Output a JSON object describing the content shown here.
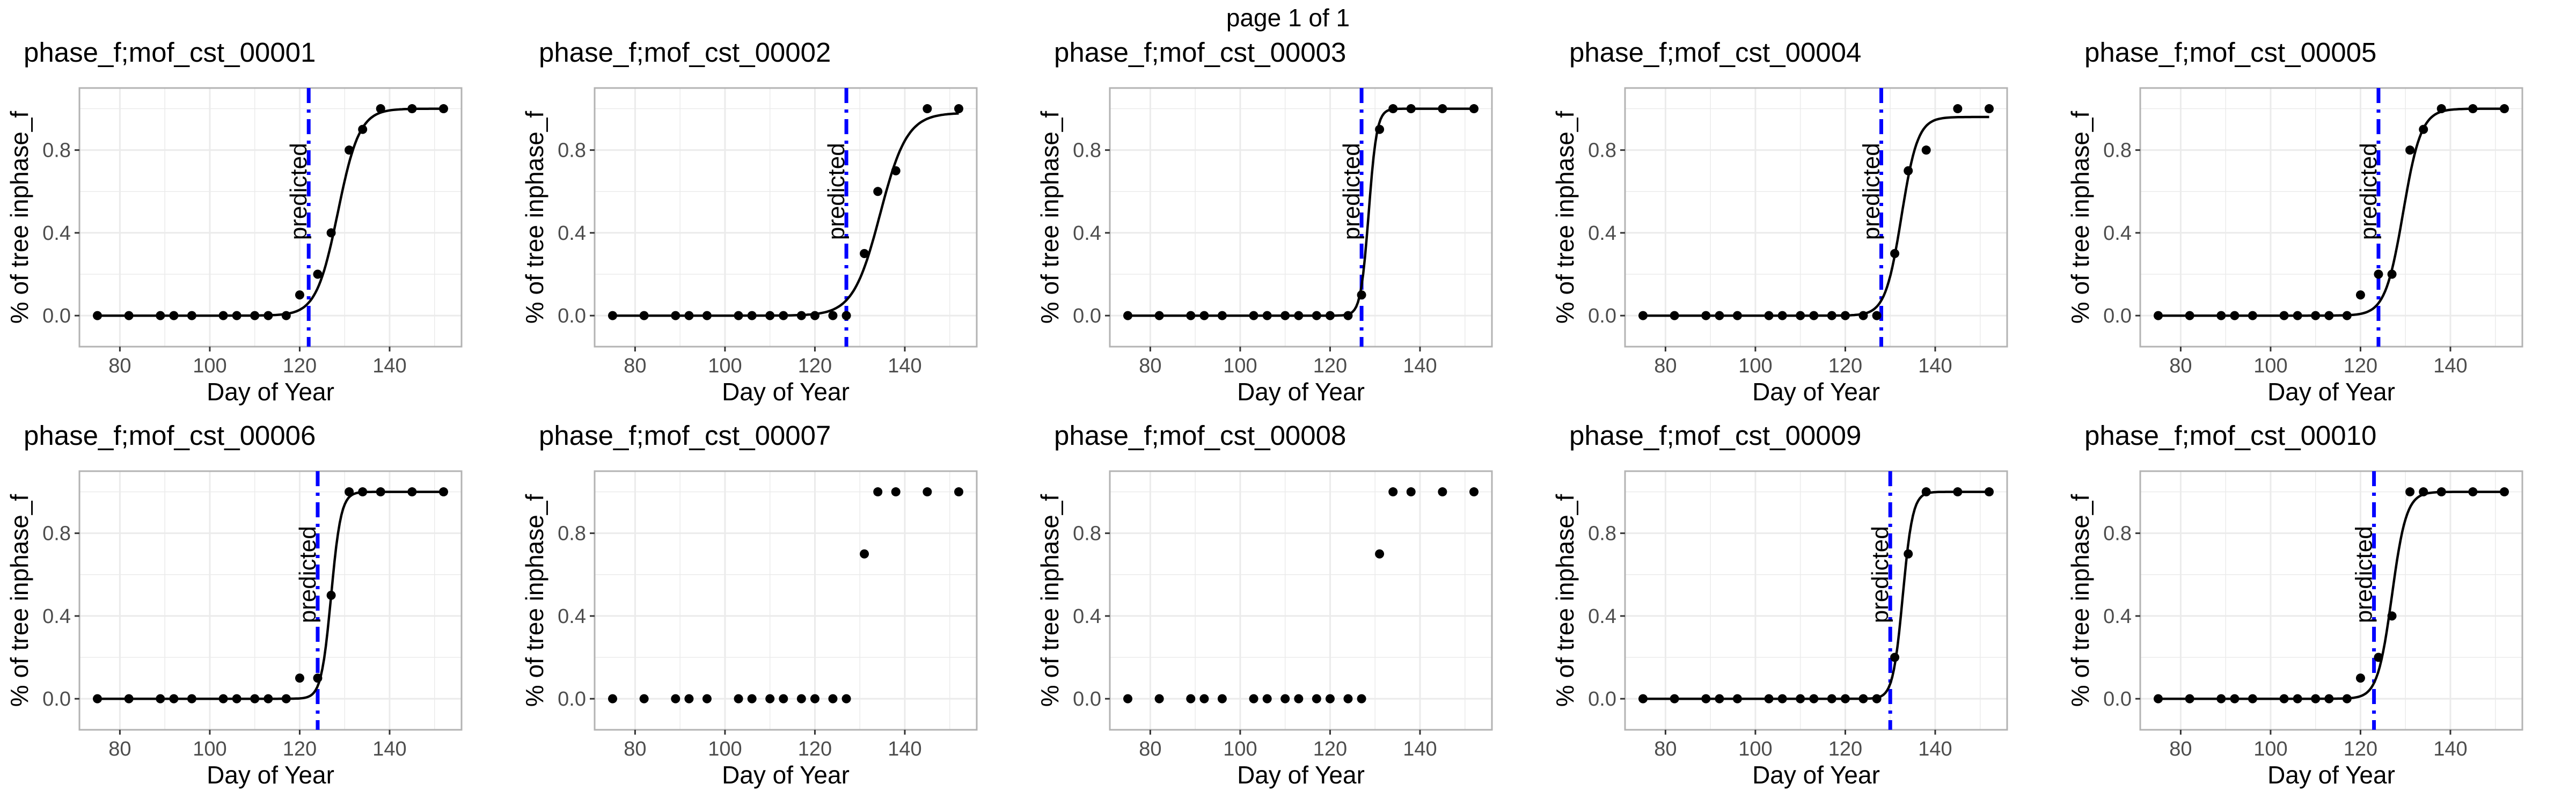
{
  "page_title": "page 1 of 1",
  "colors": {
    "predicted_line": "#0000ff",
    "points": "#000000",
    "curve": "#000000",
    "grid": "#ebebeb",
    "border": "#b3b3b3"
  },
  "chart_data": [
    {
      "type": "scatter",
      "title": "phase_f;mof_cst_00001",
      "xlabel": "Day of Year",
      "ylabel": "% of tree inphase_f",
      "xlim": [
        71,
        156
      ],
      "ylim": [
        -0.15,
        1.1
      ],
      "xticks": [
        80,
        100,
        120,
        140
      ],
      "yticks": [
        0.0,
        0.4,
        0.8
      ],
      "xtick_labels": [
        "80",
        "100",
        "120",
        "140"
      ],
      "ytick_labels": [
        "0.0",
        "0.4",
        "0.8"
      ],
      "points": {
        "x": [
          75,
          82,
          89,
          92,
          96,
          103,
          106,
          110,
          113,
          117,
          120,
          124,
          127,
          131,
          134,
          138,
          145,
          152
        ],
        "y": [
          0,
          0,
          0,
          0,
          0,
          0,
          0,
          0,
          0,
          0,
          0.1,
          0.2,
          0.4,
          0.8,
          0.9,
          1,
          1,
          1
        ]
      },
      "fit": {
        "asymptote": 1.0,
        "midpoint": 128.5,
        "scale": 2.4
      },
      "predicted": {
        "x": 122,
        "label": "predicted"
      },
      "grid": true
    },
    {
      "type": "scatter",
      "title": "phase_f;mof_cst_00002",
      "xlabel": "Day of Year",
      "ylabel": "% of tree inphase_f",
      "xlim": [
        71,
        156
      ],
      "ylim": [
        -0.15,
        1.1
      ],
      "xticks": [
        80,
        100,
        120,
        140
      ],
      "yticks": [
        0.0,
        0.4,
        0.8
      ],
      "xtick_labels": [
        "80",
        "100",
        "120",
        "140"
      ],
      "ytick_labels": [
        "0.0",
        "0.4",
        "0.8"
      ],
      "points": {
        "x": [
          75,
          82,
          89,
          92,
          96,
          103,
          106,
          110,
          113,
          117,
          120,
          124,
          127,
          131,
          134,
          138,
          145,
          152
        ],
        "y": [
          0,
          0,
          0,
          0,
          0,
          0,
          0,
          0,
          0,
          0,
          0,
          0,
          0,
          0.3,
          0.6,
          0.7,
          1,
          1
        ]
      },
      "fit": {
        "asymptote": 0.98,
        "midpoint": 134.5,
        "scale": 3.0
      },
      "predicted": {
        "x": 127,
        "label": "predicted"
      },
      "grid": true
    },
    {
      "type": "scatter",
      "title": "phase_f;mof_cst_00003",
      "xlabel": "Day of Year",
      "ylabel": "% of tree inphase_f",
      "xlim": [
        71,
        156
      ],
      "ylim": [
        -0.15,
        1.1
      ],
      "xticks": [
        80,
        100,
        120,
        140
      ],
      "yticks": [
        0.0,
        0.4,
        0.8
      ],
      "xtick_labels": [
        "80",
        "100",
        "120",
        "140"
      ],
      "ytick_labels": [
        "0.0",
        "0.4",
        "0.8"
      ],
      "points": {
        "x": [
          75,
          82,
          89,
          92,
          96,
          103,
          106,
          110,
          113,
          117,
          120,
          124,
          127,
          131,
          134,
          138,
          145,
          152
        ],
        "y": [
          0,
          0,
          0,
          0,
          0,
          0,
          0,
          0,
          0,
          0,
          0,
          0,
          0.1,
          0.9,
          1,
          1,
          1,
          1
        ]
      },
      "fit": {
        "asymptote": 1.0,
        "midpoint": 128.6,
        "scale": 0.9
      },
      "predicted": {
        "x": 127,
        "label": "predicted"
      },
      "grid": true
    },
    {
      "type": "scatter",
      "title": "phase_f;mof_cst_00004",
      "xlabel": "Day of Year",
      "ylabel": "% of tree inphase_f",
      "xlim": [
        71,
        156
      ],
      "ylim": [
        -0.15,
        1.1
      ],
      "xticks": [
        80,
        100,
        120,
        140
      ],
      "yticks": [
        0.0,
        0.4,
        0.8
      ],
      "xtick_labels": [
        "80",
        "100",
        "120",
        "140"
      ],
      "ytick_labels": [
        "0.0",
        "0.4",
        "0.8"
      ],
      "points": {
        "x": [
          75,
          82,
          89,
          92,
          96,
          103,
          106,
          110,
          113,
          117,
          120,
          124,
          127,
          131,
          134,
          138,
          145,
          152
        ],
        "y": [
          0,
          0,
          0,
          0,
          0,
          0,
          0,
          0,
          0,
          0,
          0,
          0,
          0,
          0.3,
          0.7,
          0.8,
          1,
          1
        ]
      },
      "fit": {
        "asymptote": 0.96,
        "midpoint": 132.5,
        "scale": 1.8
      },
      "predicted": {
        "x": 128,
        "label": "predicted"
      },
      "grid": true
    },
    {
      "type": "scatter",
      "title": "phase_f;mof_cst_00005",
      "xlabel": "Day of Year",
      "ylabel": "% of tree inphase_f",
      "xlim": [
        71,
        156
      ],
      "ylim": [
        -0.15,
        1.1
      ],
      "xticks": [
        80,
        100,
        120,
        140
      ],
      "yticks": [
        0.0,
        0.4,
        0.8
      ],
      "xtick_labels": [
        "80",
        "100",
        "120",
        "140"
      ],
      "ytick_labels": [
        "0.0",
        "0.4",
        "0.8"
      ],
      "points": {
        "x": [
          75,
          82,
          89,
          92,
          96,
          103,
          106,
          110,
          113,
          117,
          120,
          124,
          127,
          131,
          134,
          138,
          145,
          152
        ],
        "y": [
          0,
          0,
          0,
          0,
          0,
          0,
          0,
          0,
          0,
          0,
          0.1,
          0.2,
          0.2,
          0.8,
          0.9,
          1,
          1,
          1
        ]
      },
      "fit": {
        "asymptote": 1.0,
        "midpoint": 129.5,
        "scale": 2.0
      },
      "predicted": {
        "x": 124,
        "label": "predicted"
      },
      "grid": true
    },
    {
      "type": "scatter",
      "title": "phase_f;mof_cst_00006",
      "xlabel": "Day of Year",
      "ylabel": "% of tree inphase_f",
      "xlim": [
        71,
        156
      ],
      "ylim": [
        -0.15,
        1.1
      ],
      "xticks": [
        80,
        100,
        120,
        140
      ],
      "yticks": [
        0.0,
        0.4,
        0.8
      ],
      "xtick_labels": [
        "80",
        "100",
        "120",
        "140"
      ],
      "ytick_labels": [
        "0.0",
        "0.4",
        "0.8"
      ],
      "points": {
        "x": [
          75,
          82,
          89,
          92,
          96,
          103,
          106,
          110,
          113,
          117,
          120,
          124,
          127,
          131,
          134,
          138,
          145,
          152
        ],
        "y": [
          0,
          0,
          0,
          0,
          0,
          0,
          0,
          0,
          0,
          0,
          0.1,
          0.1,
          0.5,
          1,
          1,
          1,
          1,
          1
        ]
      },
      "fit": {
        "asymptote": 1.0,
        "midpoint": 127.0,
        "scale": 1.1
      },
      "predicted": {
        "x": 124,
        "label": "predicted"
      },
      "grid": true
    },
    {
      "type": "scatter",
      "title": "phase_f;mof_cst_00007",
      "xlabel": "Day of Year",
      "ylabel": "% of tree inphase_f",
      "xlim": [
        71,
        156
      ],
      "ylim": [
        -0.15,
        1.1
      ],
      "xticks": [
        80,
        100,
        120,
        140
      ],
      "yticks": [
        0.0,
        0.4,
        0.8
      ],
      "xtick_labels": [
        "80",
        "100",
        "120",
        "140"
      ],
      "ytick_labels": [
        "0.0",
        "0.4",
        "0.8"
      ],
      "points": {
        "x": [
          75,
          82,
          89,
          92,
          96,
          103,
          106,
          110,
          113,
          117,
          120,
          124,
          127,
          131,
          134,
          138,
          145,
          152
        ],
        "y": [
          0,
          0,
          0,
          0,
          0,
          0,
          0,
          0,
          0,
          0,
          0,
          0,
          0,
          0.7,
          1,
          1,
          1,
          1
        ]
      },
      "grid": true
    },
    {
      "type": "scatter",
      "title": "phase_f;mof_cst_00008",
      "xlabel": "Day of Year",
      "ylabel": "% of tree inphase_f",
      "xlim": [
        71,
        156
      ],
      "ylim": [
        -0.15,
        1.1
      ],
      "xticks": [
        80,
        100,
        120,
        140
      ],
      "yticks": [
        0.0,
        0.4,
        0.8
      ],
      "xtick_labels": [
        "80",
        "100",
        "120",
        "140"
      ],
      "ytick_labels": [
        "0.0",
        "0.4",
        "0.8"
      ],
      "points": {
        "x": [
          75,
          82,
          89,
          92,
          96,
          103,
          106,
          110,
          113,
          117,
          120,
          124,
          127,
          131,
          134,
          138,
          145,
          152
        ],
        "y": [
          0,
          0,
          0,
          0,
          0,
          0,
          0,
          0,
          0,
          0,
          0,
          0,
          0,
          0.7,
          1,
          1,
          1,
          1
        ]
      },
      "grid": true
    },
    {
      "type": "scatter",
      "title": "phase_f;mof_cst_00009",
      "xlabel": "Day of Year",
      "ylabel": "% of tree inphase_f",
      "xlim": [
        71,
        156
      ],
      "ylim": [
        -0.15,
        1.1
      ],
      "xticks": [
        80,
        100,
        120,
        140
      ],
      "yticks": [
        0.0,
        0.4,
        0.8
      ],
      "xtick_labels": [
        "80",
        "100",
        "120",
        "140"
      ],
      "ytick_labels": [
        "0.0",
        "0.4",
        "0.8"
      ],
      "points": {
        "x": [
          75,
          82,
          89,
          92,
          96,
          103,
          106,
          110,
          113,
          117,
          120,
          124,
          127,
          131,
          134,
          138,
          145,
          152
        ],
        "y": [
          0,
          0,
          0,
          0,
          0,
          0,
          0,
          0,
          0,
          0,
          0,
          0,
          0,
          0.2,
          0.7,
          1,
          1,
          1
        ]
      },
      "fit": {
        "asymptote": 1.0,
        "midpoint": 132.8,
        "scale": 1.1
      },
      "predicted": {
        "x": 130,
        "label": "predicted"
      },
      "grid": true
    },
    {
      "type": "scatter",
      "title": "phase_f;mof_cst_00010",
      "xlabel": "Day of Year",
      "ylabel": "% of tree inphase_f",
      "xlim": [
        71,
        156
      ],
      "ylim": [
        -0.15,
        1.1
      ],
      "xticks": [
        80,
        100,
        120,
        140
      ],
      "yticks": [
        0.0,
        0.4,
        0.8
      ],
      "xtick_labels": [
        "80",
        "100",
        "120",
        "140"
      ],
      "ytick_labels": [
        "0.0",
        "0.4",
        "0.8"
      ],
      "points": {
        "x": [
          75,
          82,
          89,
          92,
          96,
          103,
          106,
          110,
          113,
          117,
          120,
          124,
          127,
          131,
          134,
          138,
          145,
          152
        ],
        "y": [
          0,
          0,
          0,
          0,
          0,
          0,
          0,
          0,
          0,
          0,
          0.1,
          0.2,
          0.4,
          1,
          1,
          1,
          1,
          1
        ]
      },
      "fit": {
        "asymptote": 1.0,
        "midpoint": 127.0,
        "scale": 1.6
      },
      "predicted": {
        "x": 123,
        "label": "predicted"
      },
      "grid": true
    }
  ]
}
